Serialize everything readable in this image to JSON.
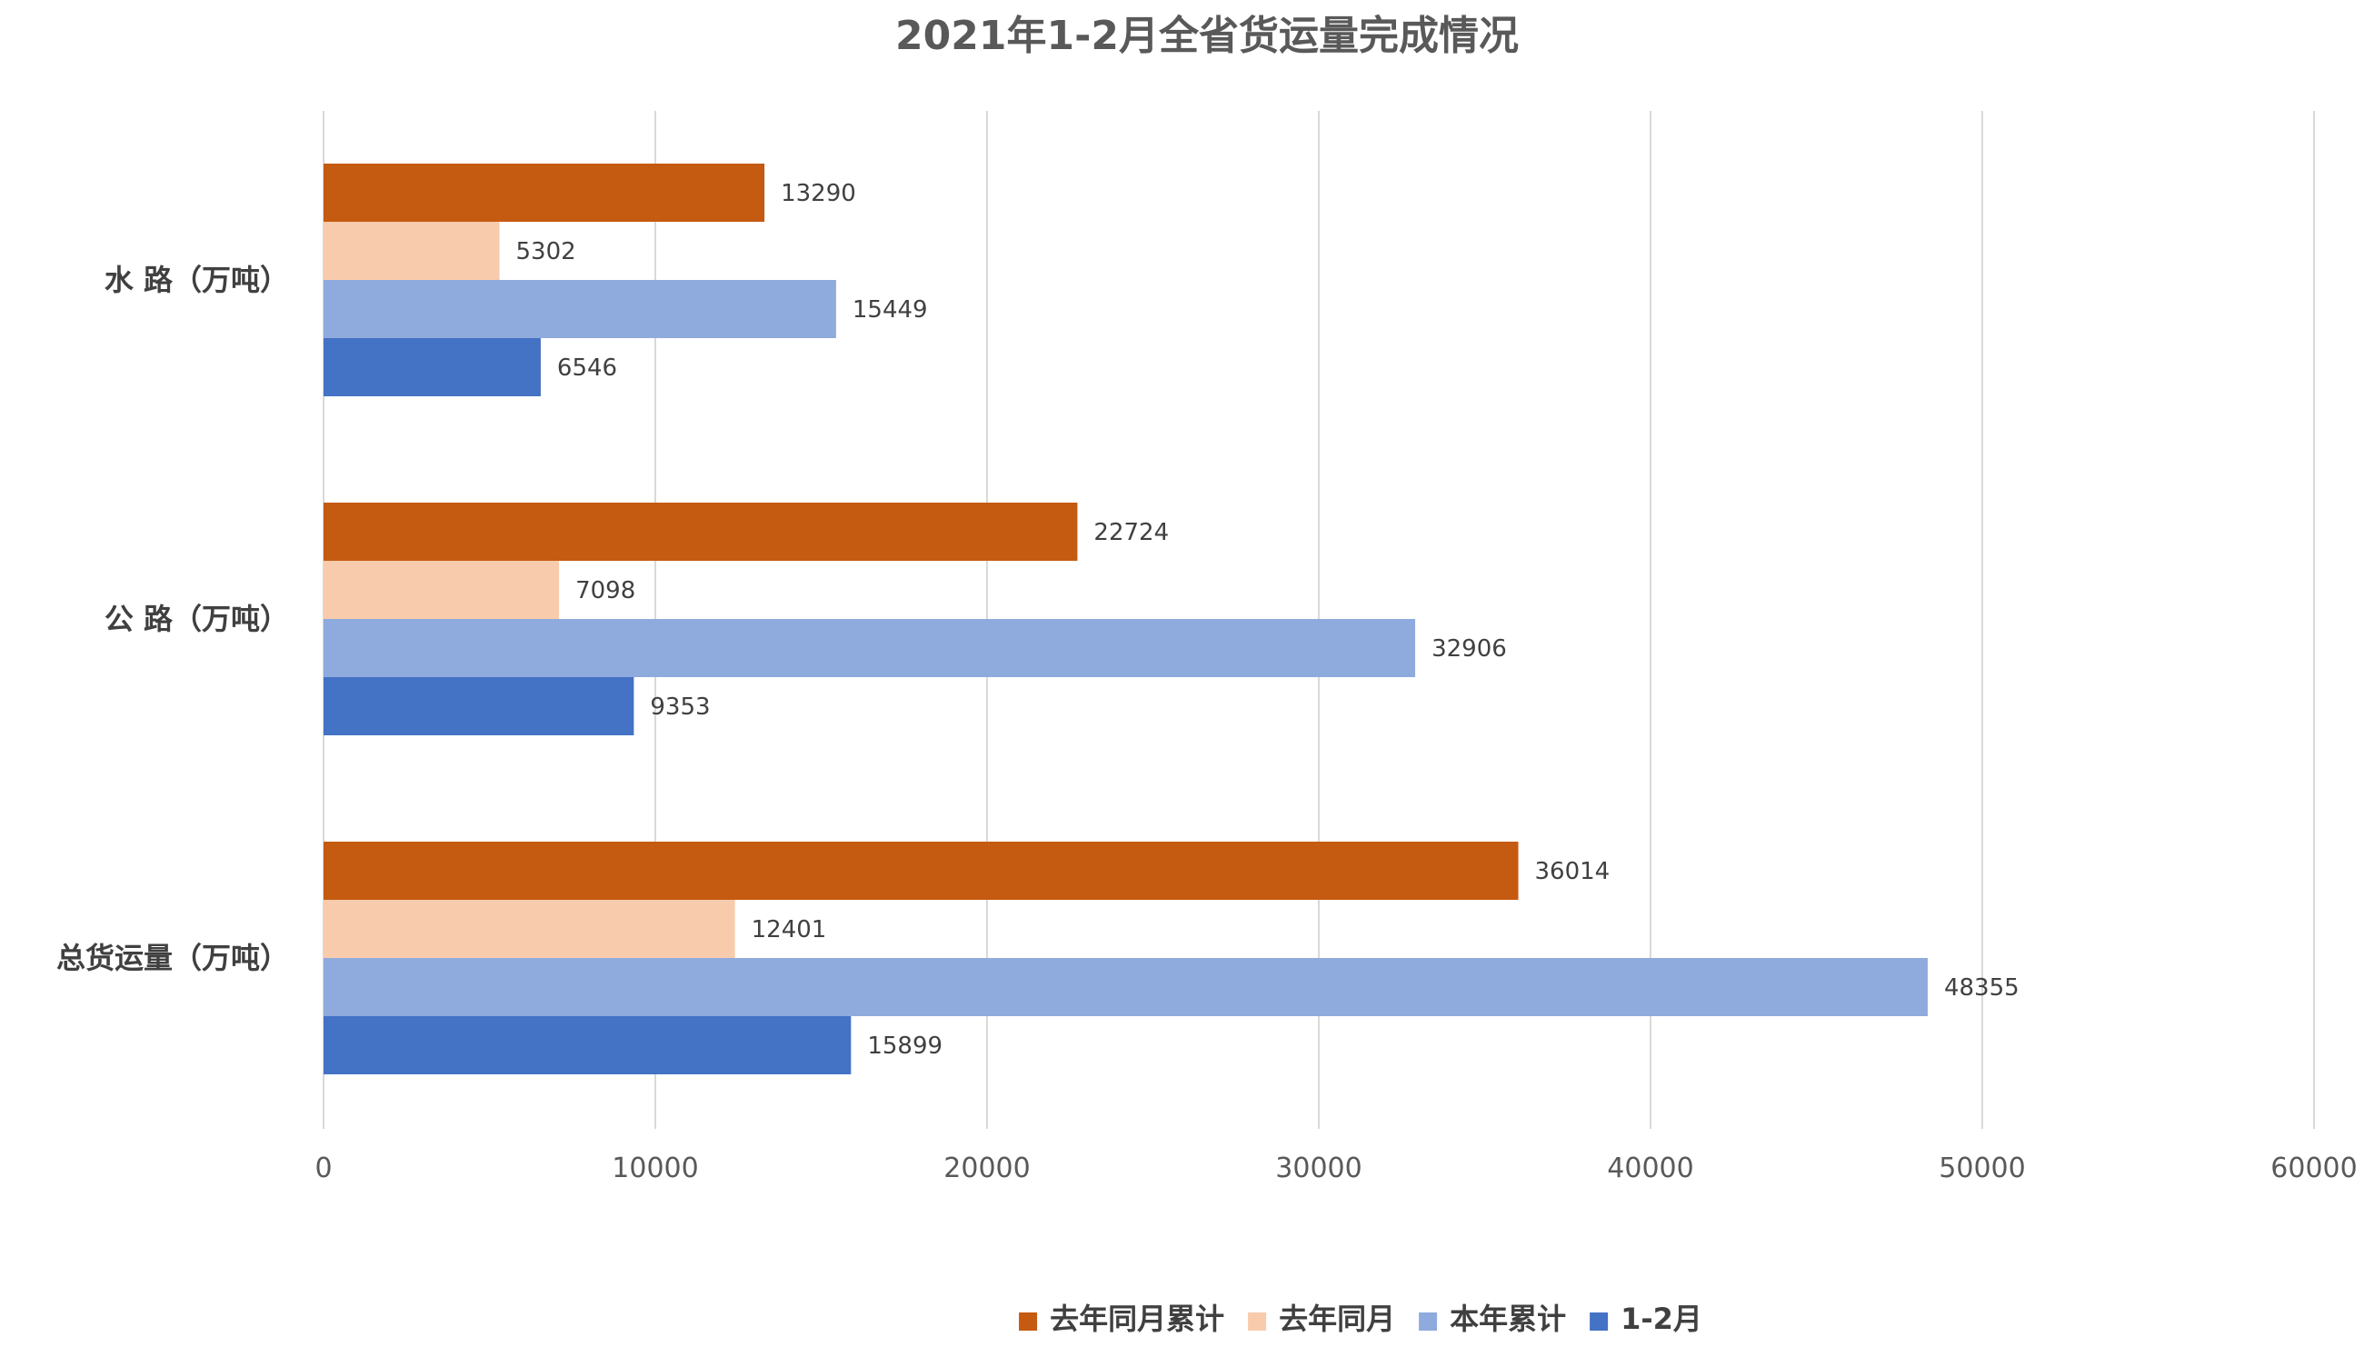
{
  "chart_data": {
    "type": "bar",
    "orientation": "horizontal",
    "title": "2021年1-2月全省货运量完成情况",
    "categories": [
      "水 路（万吨）",
      "公 路（万吨）",
      "总货运量（万吨）"
    ],
    "series": [
      {
        "name": "去年同月累计",
        "color": "#C55A11",
        "values": [
          13290,
          22724,
          36014
        ]
      },
      {
        "name": "去年同月",
        "color": "#F8CBAD",
        "values": [
          5302,
          7098,
          12401
        ]
      },
      {
        "name": "本年累计",
        "color": "#8FAADC",
        "values": [
          15449,
          32906,
          48355
        ]
      },
      {
        "name": "1-2月",
        "color": "#4472C4",
        "values": [
          6546,
          9353,
          15899
        ]
      }
    ],
    "xlim": [
      0,
      60000
    ],
    "xticks": [
      "0",
      "10000",
      "20000",
      "30000",
      "40000",
      "50000",
      "60000"
    ],
    "grid": true,
    "legend_position": "bottom"
  }
}
